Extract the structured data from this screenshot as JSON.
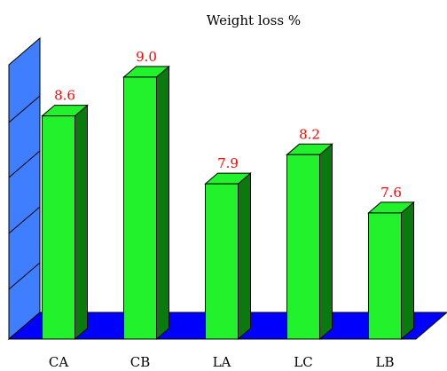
{
  "chart_data": {
    "type": "bar",
    "title": "Weight loss %",
    "categories": [
      "CA",
      "CB",
      "LA",
      "LC",
      "LB"
    ],
    "values": [
      8.6,
      9.0,
      7.9,
      8.2,
      7.6
    ],
    "value_labels": [
      "8.6",
      "9.0",
      "7.9",
      "8.2",
      "7.6"
    ],
    "ylim": [
      6.3,
      9.2
    ],
    "grid": false,
    "legend": "none",
    "xlabel": "",
    "ylabel": "",
    "colors": {
      "bar_front": "#22f22b",
      "bar_top": "#22f22b",
      "bar_side": "#0a7a0f",
      "floor": "#0000ff",
      "wall": "#3f7fff",
      "value_label": "#ff0000"
    }
  }
}
